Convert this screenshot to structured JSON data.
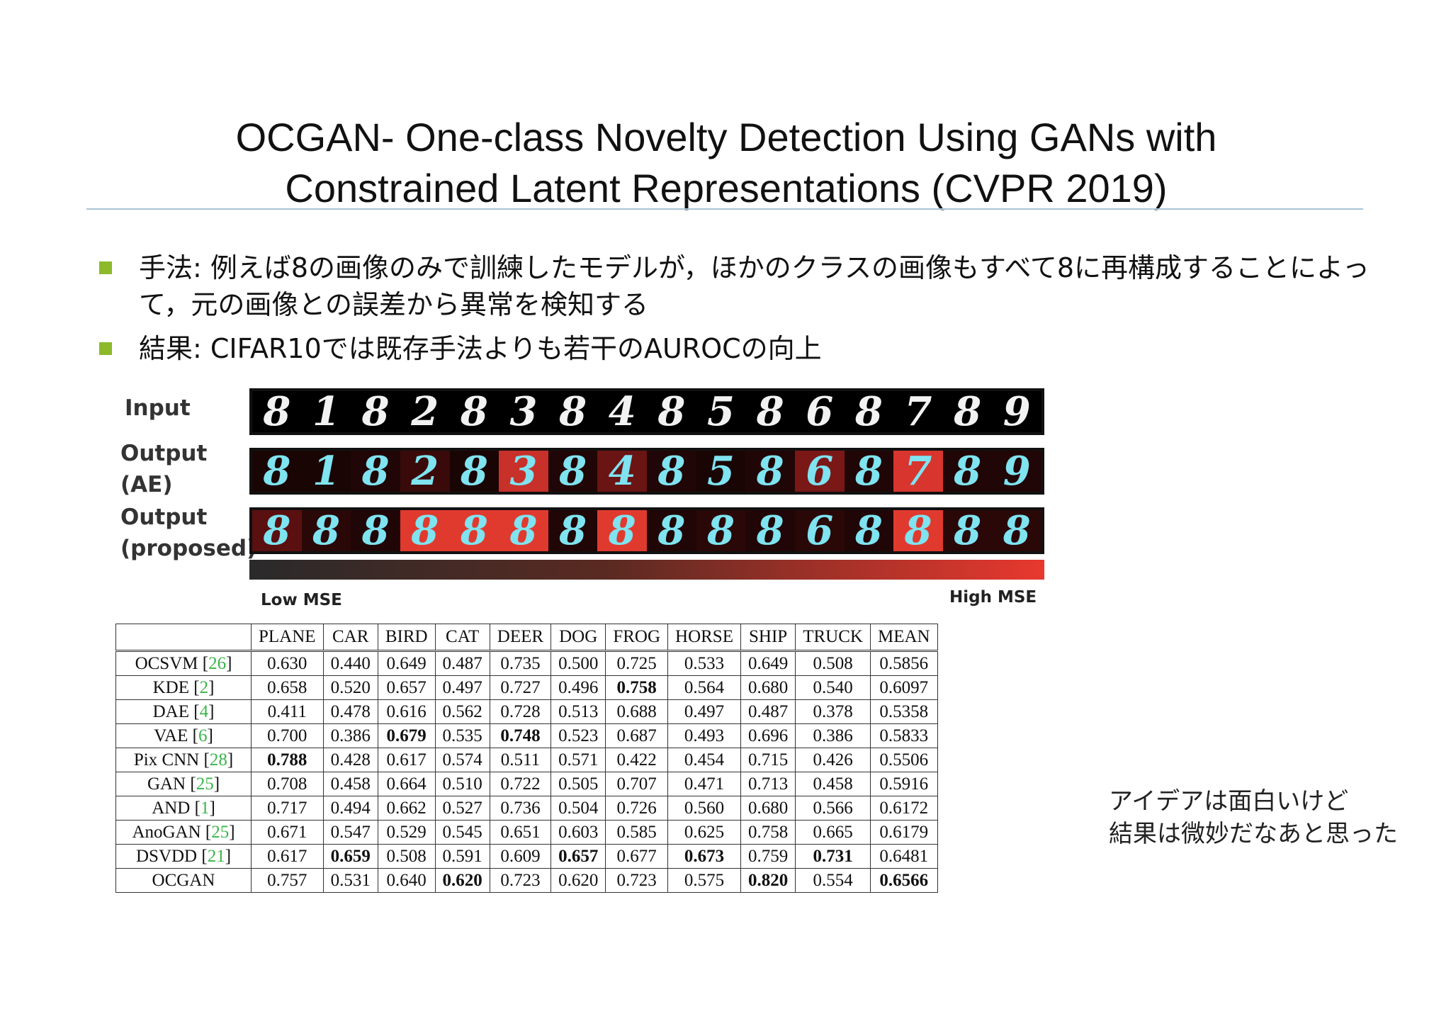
{
  "title_line1": "OCGAN- One-class Novelty Detection Using GANs with",
  "title_line2": "Constrained Latent Representations (CVPR 2019)",
  "bullets": [
    "手法: 例えば8の画像のみで訓練したモデルが，ほかのクラスの画像もすべて8に再構成することによって，元の画像との誤差から異常を検知する",
    "結果: CIFAR10では既存手法よりも若干のAUROCの向上"
  ],
  "figure": {
    "labels": {
      "input": "Input",
      "output_ae_1": "Output",
      "output_ae_2": "(AE)",
      "output_proposed_1": "Output",
      "output_proposed_2": "(proposed)"
    },
    "input_digits": [
      "8",
      "1",
      "8",
      "2",
      "8",
      "3",
      "8",
      "4",
      "8",
      "5",
      "8",
      "6",
      "8",
      "7",
      "8",
      "9"
    ],
    "ae_digits": [
      "8",
      "1",
      "8",
      "2",
      "8",
      "3",
      "8",
      "4",
      "8",
      "5",
      "8",
      "6",
      "8",
      "7",
      "8",
      "9"
    ],
    "proposed_digits": [
      "8",
      "8",
      "8",
      "8",
      "8",
      "8",
      "8",
      "8",
      "8",
      "8",
      "8",
      "6",
      "8",
      "8",
      "8",
      "8"
    ],
    "low_mse": "Low MSE",
    "high_mse": "High MSE"
  },
  "table": {
    "headers": [
      "",
      "PLANE",
      "CAR",
      "BIRD",
      "CAT",
      "DEER",
      "DOG",
      "FROG",
      "HORSE",
      "SHIP",
      "TRUCK",
      "MEAN"
    ],
    "rows": [
      {
        "name": "OCSVM",
        "ref": "26",
        "values": [
          "0.630",
          "0.440",
          "0.649",
          "0.487",
          "0.735",
          "0.500",
          "0.725",
          "0.533",
          "0.649",
          "0.508",
          "0.5856"
        ],
        "bold": []
      },
      {
        "name": "KDE",
        "ref": "2",
        "values": [
          "0.658",
          "0.520",
          "0.657",
          "0.497",
          "0.727",
          "0.496",
          "0.758",
          "0.564",
          "0.680",
          "0.540",
          "0.6097"
        ],
        "bold": [
          6
        ]
      },
      {
        "name": "DAE",
        "ref": "4",
        "values": [
          "0.411",
          "0.478",
          "0.616",
          "0.562",
          "0.728",
          "0.513",
          "0.688",
          "0.497",
          "0.487",
          "0.378",
          "0.5358"
        ],
        "bold": []
      },
      {
        "name": "VAE",
        "ref": "6",
        "values": [
          "0.700",
          "0.386",
          "0.679",
          "0.535",
          "0.748",
          "0.523",
          "0.687",
          "0.493",
          "0.696",
          "0.386",
          "0.5833"
        ],
        "bold": [
          2,
          4
        ]
      },
      {
        "name": "Pix CNN",
        "ref": "28",
        "values": [
          "0.788",
          "0.428",
          "0.617",
          "0.574",
          "0.511",
          "0.571",
          "0.422",
          "0.454",
          "0.715",
          "0.426",
          "0.5506"
        ],
        "bold": [
          0
        ]
      },
      {
        "name": "GAN",
        "ref": "25",
        "values": [
          "0.708",
          "0.458",
          "0.664",
          "0.510",
          "0.722",
          "0.505",
          "0.707",
          "0.471",
          "0.713",
          "0.458",
          "0.5916"
        ],
        "bold": []
      },
      {
        "name": "AND",
        "ref": "1",
        "values": [
          "0.717",
          "0.494",
          "0.662",
          "0.527",
          "0.736",
          "0.504",
          "0.726",
          "0.560",
          "0.680",
          "0.566",
          "0.6172"
        ],
        "bold": []
      },
      {
        "name": "AnoGAN",
        "ref": "25",
        "values": [
          "0.671",
          "0.547",
          "0.529",
          "0.545",
          "0.651",
          "0.603",
          "0.585",
          "0.625",
          "0.758",
          "0.665",
          "0.6179"
        ],
        "bold": []
      },
      {
        "name": "DSVDD",
        "ref": "21",
        "values": [
          "0.617",
          "0.659",
          "0.508",
          "0.591",
          "0.609",
          "0.657",
          "0.677",
          "0.673",
          "0.759",
          "0.731",
          "0.6481"
        ],
        "bold": [
          1,
          5,
          7,
          9
        ]
      },
      {
        "name": "OCGAN",
        "ref": "",
        "values": [
          "0.757",
          "0.531",
          "0.640",
          "0.620",
          "0.723",
          "0.620",
          "0.723",
          "0.575",
          "0.820",
          "0.554",
          "0.6566"
        ],
        "bold": [
          3,
          8,
          10
        ]
      }
    ]
  },
  "comment_line1": "アイデアは面白いけど",
  "comment_line2": "結果は微妙だなあと思った",
  "colors": {
    "bullet": "#8cba2a",
    "ref": "#3bb54a",
    "rule": "#a9c4d6",
    "digit": "#7fe3f0"
  }
}
